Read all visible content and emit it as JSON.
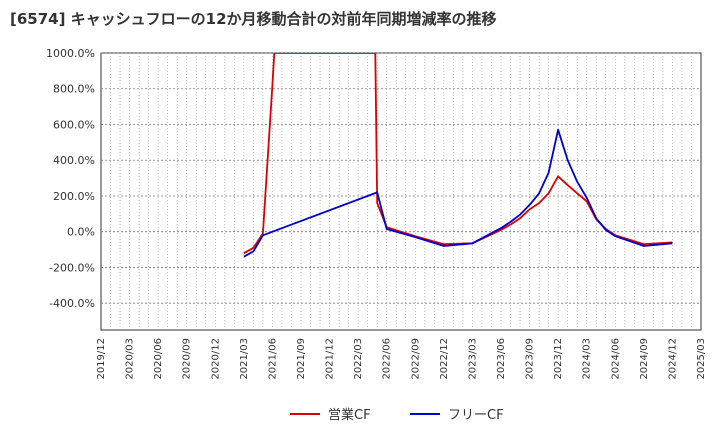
{
  "chart_data": {
    "type": "line",
    "title": "[6574]  キャッシュフローの12か月移動合計の対前年同期増減率の推移",
    "xlabel": "",
    "ylabel": "",
    "ylim": [
      -550,
      1000
    ],
    "y_ticks": [
      1000,
      800,
      600,
      400,
      200,
      0,
      -200,
      -400
    ],
    "y_tick_labels": [
      "1000.0%",
      "800.0%",
      "600.0%",
      "400.0%",
      "200.0%",
      "0.0%",
      "-200.0%",
      "-400.0%"
    ],
    "x_range": [
      "2019/12",
      "2025/03"
    ],
    "x_tick_labels": [
      "2019/12",
      "2020/03",
      "2020/06",
      "2020/09",
      "2020/12",
      "2021/03",
      "2021/06",
      "2021/09",
      "2021/12",
      "2022/03",
      "2022/06",
      "2022/09",
      "2022/12",
      "2023/03",
      "2023/06",
      "2023/09",
      "2023/12",
      "2024/03",
      "2024/06",
      "2024/09",
      "2024/12",
      "2025/03"
    ],
    "grid": true,
    "legend_position": "bottom",
    "series": [
      {
        "name": "営業CF",
        "color": "#dd0000",
        "points": [
          {
            "x": "2021/03",
            "y": -120
          },
          {
            "x": "2021/04",
            "y": -90
          },
          {
            "x": "2021/05",
            "y": -10
          },
          {
            "x": "2021/06",
            "y": 820
          },
          {
            "x": "2021/06.2",
            "y": 1000,
            "clipped": true
          },
          {
            "x": "2022/04.8",
            "y": 1000,
            "clipped": true
          },
          {
            "x": "2022/05",
            "y": 160
          },
          {
            "x": "2022/06",
            "y": 25
          },
          {
            "x": "2022/09",
            "y": -25
          },
          {
            "x": "2022/12",
            "y": -70
          },
          {
            "x": "2023/03",
            "y": -65
          },
          {
            "x": "2023/06",
            "y": 10
          },
          {
            "x": "2023/07",
            "y": 40
          },
          {
            "x": "2023/08",
            "y": 75
          },
          {
            "x": "2023/09",
            "y": 125
          },
          {
            "x": "2023/10",
            "y": 160
          },
          {
            "x": "2023/11",
            "y": 215
          },
          {
            "x": "2023/12",
            "y": 310
          },
          {
            "x": "2024/01",
            "y": 260
          },
          {
            "x": "2024/02",
            "y": 215
          },
          {
            "x": "2024/03",
            "y": 170
          },
          {
            "x": "2024/04",
            "y": 70
          },
          {
            "x": "2024/05",
            "y": 15
          },
          {
            "x": "2024/06",
            "y": -20
          },
          {
            "x": "2024/09",
            "y": -70
          },
          {
            "x": "2024/12",
            "y": -60
          }
        ]
      },
      {
        "name": "フリーCF",
        "color": "#0000cc",
        "points": [
          {
            "x": "2021/03",
            "y": -140
          },
          {
            "x": "2021/04",
            "y": -110
          },
          {
            "x": "2021/05",
            "y": -20
          },
          {
            "x": "2022/05",
            "y": 220
          },
          {
            "x": "2022/06",
            "y": 15
          },
          {
            "x": "2022/09",
            "y": -30
          },
          {
            "x": "2022/12",
            "y": -80
          },
          {
            "x": "2023/03",
            "y": -65
          },
          {
            "x": "2023/06",
            "y": 20
          },
          {
            "x": "2023/07",
            "y": 55
          },
          {
            "x": "2023/08",
            "y": 95
          },
          {
            "x": "2023/09",
            "y": 150
          },
          {
            "x": "2023/10",
            "y": 215
          },
          {
            "x": "2023/11",
            "y": 330
          },
          {
            "x": "2023/12",
            "y": 570
          },
          {
            "x": "2024/01",
            "y": 400
          },
          {
            "x": "2024/02",
            "y": 280
          },
          {
            "x": "2024/03",
            "y": 190
          },
          {
            "x": "2024/04",
            "y": 75
          },
          {
            "x": "2024/05",
            "y": 10
          },
          {
            "x": "2024/06",
            "y": -25
          },
          {
            "x": "2024/09",
            "y": -80
          },
          {
            "x": "2024/12",
            "y": -65
          }
        ]
      }
    ]
  }
}
